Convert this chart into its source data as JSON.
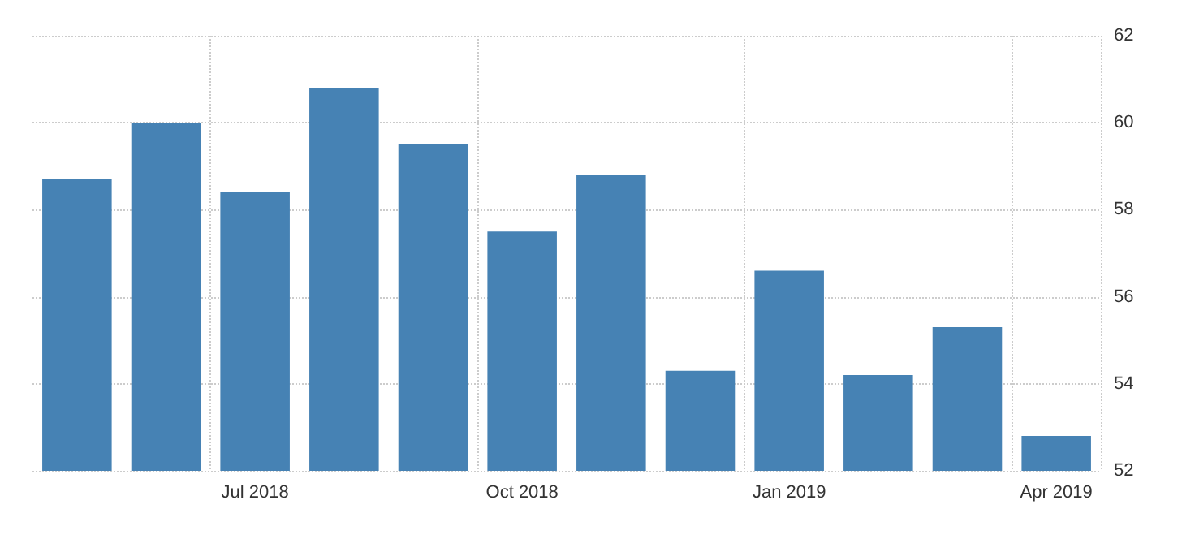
{
  "chart_data": {
    "type": "bar",
    "categories": [
      null,
      null,
      "Jul 2018",
      null,
      null,
      "Oct 2018",
      null,
      null,
      "Jan 2019",
      null,
      null,
      "Apr 2019"
    ],
    "values": [
      58.7,
      60.0,
      58.4,
      60.8,
      59.5,
      57.5,
      58.8,
      54.3,
      56.6,
      54.2,
      55.3,
      52.8
    ],
    "color": "#4682b4",
    "ylim": [
      52,
      62
    ],
    "yticks": [
      52,
      54,
      56,
      58,
      60,
      62
    ],
    "grid": true
  }
}
